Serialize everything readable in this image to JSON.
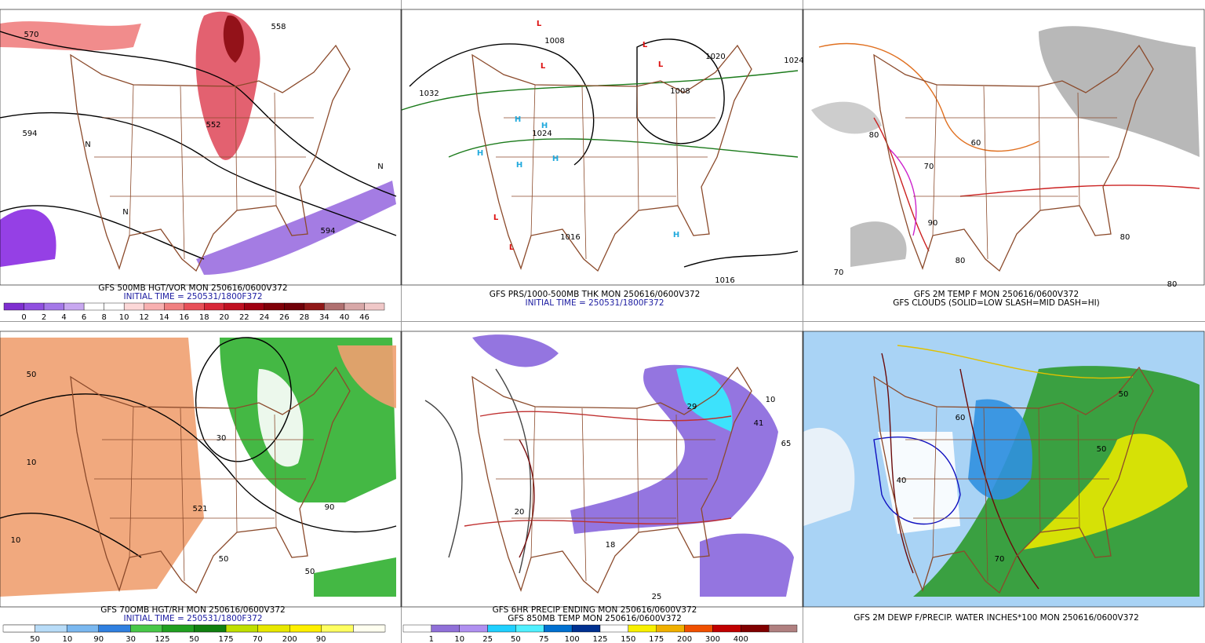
{
  "panels": [
    {
      "captions": [
        "GFS 500MB HGT/VOR MON 250616/0600V372",
        "INITIAL TIME = 250531/1800F372"
      ],
      "colorbar": {
        "labels": [
          0,
          2,
          4,
          6,
          8,
          10,
          12,
          14,
          16,
          18,
          20,
          22,
          24,
          26,
          28,
          34,
          40,
          46
        ]
      },
      "map_labels": [
        "570",
        "558",
        "594",
        "552",
        "594",
        "N",
        "N",
        "N"
      ]
    },
    {
      "captions": [
        "GFS PRS/1000-500MB THK MON 250616/0600V372",
        "INITIAL TIME = 250531/1800F372"
      ],
      "map_labels": [
        "L",
        "L",
        "L",
        "L",
        "L",
        "L",
        "H",
        "H",
        "H",
        "H",
        "H",
        "H",
        "1008",
        "1008",
        "1032",
        "1024",
        "1016",
        "1016",
        "1020",
        "1024"
      ]
    },
    {
      "captions": [
        "GFS 2M TEMP F MON 250616/0600V372",
        "GFS CLOUDS (SOLID=LOW SLASH=MID DASH=HI)"
      ],
      "map_labels": [
        "80",
        "70",
        "80",
        "90",
        "60",
        "80",
        "70",
        "80"
      ]
    },
    {
      "captions": [
        "GFS 70OMB HGT/RH MON 250616/0600V372",
        "INITIAL TIME = 250531/1800F372"
      ],
      "colorbar": {
        "labels": [
          10,
          30,
          50,
          70,
          90
        ]
      },
      "map_labels": [
        "10",
        "50",
        "30",
        "50",
        "521",
        "10",
        "90",
        "50"
      ]
    },
    {
      "captions": [
        "GFS 6HR PRECIP ENDING MON 250616/0600V372",
        "GFS 850MB TEMP MON 250616/0600V372"
      ],
      "colorbar": {
        "labels": [
          1,
          10,
          25,
          50,
          75,
          100,
          125,
          150,
          175,
          200,
          300,
          400
        ]
      },
      "map_labels": [
        "29",
        "41",
        "65",
        "10",
        "25",
        "18",
        "20"
      ]
    },
    {
      "captions": [
        "GFS 2M DEWP F/PRECIP. WATER INCHES*100 MON 250616/0600V372"
      ],
      "colorbar": {
        "labels": [
          50,
          90,
          125,
          175,
          200
        ]
      },
      "map_labels": [
        "50",
        "50",
        "40",
        "60",
        "70"
      ]
    }
  ]
}
